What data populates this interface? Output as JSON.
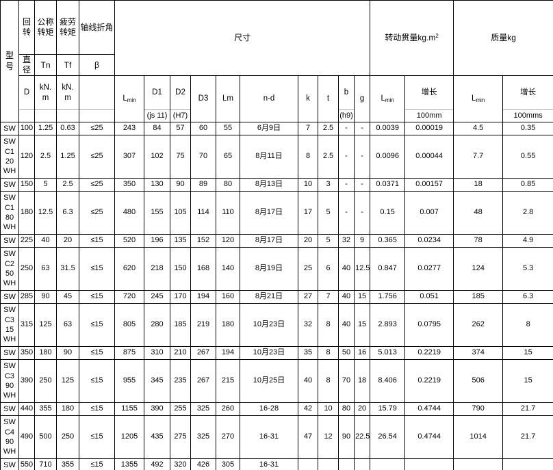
{
  "table": {
    "header": {
      "model": "型\n号",
      "rotation": {
        "top": "回\n转",
        "mid": "直\n径",
        "unit": "D"
      },
      "nominal_torque": {
        "top": "公称\n转矩",
        "mid": "Tn",
        "unit": "kN.\nm"
      },
      "fatigue_torque": {
        "top": "疲劳\n转矩",
        "mid": "Tf",
        "unit": "kN.\nm"
      },
      "axis_angle": {
        "top": "轴线折角",
        "mid": "β",
        "unit": ""
      },
      "dims_title": "尺寸",
      "lmin": {
        "base": "L",
        "sub": "min"
      },
      "cols": {
        "d1": "D1",
        "d1_tol": "(js 11)",
        "d2": "D2",
        "d2_tol": "(H7)",
        "d3": "D3",
        "lm": "Lm",
        "nd": "n-d",
        "k": "k",
        "t": "t",
        "b": "b",
        "b_tol": "(h9)",
        "g": "g"
      },
      "inertia": {
        "title_base": "转动贯量kg.m",
        "title_sup": "2",
        "growth": "增长",
        "growth_unit": "100mm"
      },
      "mass": {
        "title": "质量kg",
        "growth": "增长",
        "growth_unit": "100mms"
      }
    },
    "rows": [
      [
        "SW",
        "100",
        "1.25",
        "0.63",
        "≤25",
        "243",
        "84",
        "57",
        "60",
        "55",
        "6月9日",
        "7",
        "2.5",
        "-",
        "-",
        "0.0039",
        "0.00019",
        "4.5",
        "0.35"
      ],
      [
        "SW\nC1\n20\nWH",
        "120",
        "2.5",
        "1.25",
        "≤25",
        "307",
        "102",
        "75",
        "70",
        "65",
        "8月11日",
        "8",
        "2.5",
        "-",
        "-",
        "0.0096",
        "0.00044",
        "7.7",
        "0.55"
      ],
      [
        "SW",
        "150",
        "5",
        "2.5",
        "≤25",
        "350",
        "130",
        "90",
        "89",
        "80",
        "8月13日",
        "10",
        "3",
        "-",
        "-",
        "0.0371",
        "0.00157",
        "18",
        "0.85"
      ],
      [
        "SW\nC1\n80\nWH",
        "180",
        "12.5",
        "6.3",
        "≤25",
        "480",
        "155",
        "105",
        "114",
        "110",
        "8月17日",
        "17",
        "5",
        "-",
        "-",
        "0.15",
        "0.007",
        "48",
        "2.8"
      ],
      [
        "SW",
        "225",
        "40",
        "20",
        "≤15",
        "520",
        "196",
        "135",
        "152",
        "120",
        "8月17日",
        "20",
        "5",
        "32",
        "9",
        "0.365",
        "0.0234",
        "78",
        "4.9"
      ],
      [
        "SW\nC2\n50\nWH",
        "250",
        "63",
        "31.5",
        "≤15",
        "620",
        "218",
        "150",
        "168",
        "140",
        "8月19日",
        "25",
        "6",
        "40",
        "12.5",
        "0.847",
        "0.0277",
        "124",
        "5.3"
      ],
      [
        "SW",
        "285",
        "90",
        "45",
        "≤15",
        "720",
        "245",
        "170",
        "194",
        "160",
        "8月21日",
        "27",
        "7",
        "40",
        "15",
        "1.756",
        "0.051",
        "185",
        "6.3"
      ],
      [
        "SW\nC3\n15\nWH",
        "315",
        "125",
        "63",
        "≤15",
        "805",
        "280",
        "185",
        "219",
        "180",
        "10月23日",
        "32",
        "8",
        "40",
        "15",
        "2.893",
        "0.0795",
        "262",
        "8"
      ],
      [
        "SW",
        "350",
        "180",
        "90",
        "≤15",
        "875",
        "310",
        "210",
        "267",
        "194",
        "10月23日",
        "35",
        "8",
        "50",
        "16",
        "5.013",
        "0.2219",
        "374",
        "15"
      ],
      [
        "SW\nC3\n90\nWH",
        "390",
        "250",
        "125",
        "≤15",
        "955",
        "345",
        "235",
        "267",
        "215",
        "10月25日",
        "40",
        "8",
        "70",
        "18",
        "8.406",
        "0.2219",
        "506",
        "15"
      ],
      [
        "SW",
        "440",
        "355",
        "180",
        "≤15",
        "1155",
        "390",
        "255",
        "325",
        "260",
        "16-28",
        "42",
        "10",
        "80",
        "20",
        "15.79",
        "0.4744",
        "790",
        "21.7"
      ],
      [
        "SW\nC4\n90\nWH",
        "490",
        "500",
        "250",
        "≤15",
        "1205",
        "435",
        "275",
        "325",
        "270",
        "16-31",
        "47",
        "12",
        "90",
        "22.5",
        "26.54",
        "0.4744",
        "1014",
        "21.7"
      ],
      [
        "SW",
        "550",
        "710",
        "355",
        "≤15",
        "1355",
        "492",
        "320",
        "426",
        "305",
        "16-31",
        "",
        "",
        "",
        "",
        "",
        "",
        "",
        ""
      ]
    ]
  }
}
